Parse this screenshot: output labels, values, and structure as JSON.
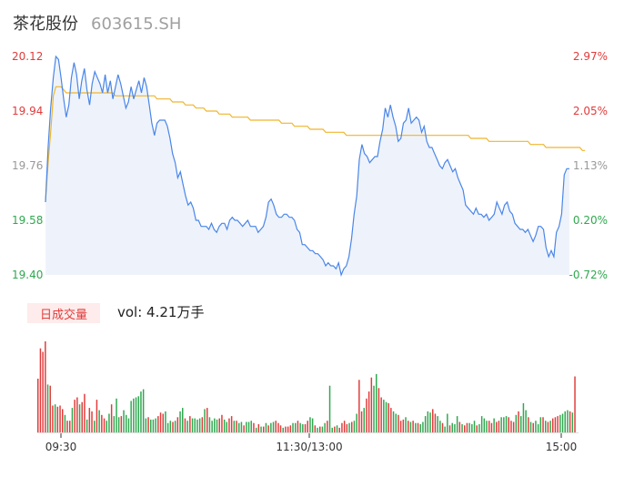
{
  "header": {
    "name": "茶花股份",
    "code": "603615.SH"
  },
  "volume_panel": {
    "tab_label": "日成交量",
    "vol_label": "vol: 4.21万手"
  },
  "colors": {
    "price_line": "#4a86e8",
    "avg_line": "#f0b52c",
    "up": "#e23b3b",
    "down": "#2fa84f",
    "neutral": "#999999"
  },
  "chart_data": [
    {
      "type": "line",
      "y_ticks_left": [
        "20.12",
        "19.94",
        "19.76",
        "19.58",
        "19.40"
      ],
      "y_ticks_right": [
        "2.97%",
        "2.05%",
        "1.13%",
        "0.20%",
        "-0.72%"
      ],
      "ylim": [
        19.4,
        20.12
      ],
      "series": [
        {
          "key": "price",
          "values": [
            19.64,
            19.82,
            19.95,
            20.05,
            20.12,
            20.11,
            20.05,
            19.98,
            19.92,
            19.96,
            20.05,
            20.1,
            20.06,
            19.98,
            20.04,
            20.08,
            20.01,
            19.96,
            20.03,
            20.07,
            20.05,
            20.03,
            20.0,
            20.06,
            20.0,
            20.04,
            19.98,
            20.02,
            20.06,
            20.03,
            19.99,
            19.95,
            19.97,
            20.02,
            19.98,
            20.01,
            20.04,
            20.0,
            20.05,
            20.02,
            19.96,
            19.9,
            19.86,
            19.9,
            19.91,
            19.91,
            19.91,
            19.89,
            19.85,
            19.8,
            19.77,
            19.72,
            19.74,
            19.7,
            19.66,
            19.63,
            19.64,
            19.62,
            19.58,
            19.58,
            19.56,
            19.56,
            19.56,
            19.55,
            19.57,
            19.55,
            19.54,
            19.56,
            19.57,
            19.57,
            19.55,
            19.58,
            19.59,
            19.58,
            19.58,
            19.57,
            19.56,
            19.57,
            19.58,
            19.56,
            19.56,
            19.56,
            19.54,
            19.55,
            19.56,
            19.59,
            19.64,
            19.65,
            19.63,
            19.6,
            19.59,
            19.59,
            19.6,
            19.6,
            19.59,
            19.59,
            19.58,
            19.55,
            19.54,
            19.5,
            19.5,
            19.49,
            19.48,
            19.48,
            19.47,
            19.47,
            19.46,
            19.45,
            19.43,
            19.44,
            19.43,
            19.43,
            19.42,
            19.44,
            19.4,
            19.42,
            19.43,
            19.46,
            19.52,
            19.6,
            19.66,
            19.78,
            19.83,
            19.8,
            19.79,
            19.77,
            19.78,
            19.79,
            19.79,
            19.84,
            19.88,
            19.95,
            19.92,
            19.96,
            19.92,
            19.89,
            19.84,
            19.85,
            19.9,
            19.91,
            19.95,
            19.9,
            19.91,
            19.92,
            19.91,
            19.87,
            19.89,
            19.84,
            19.82,
            19.82,
            19.8,
            19.78,
            19.76,
            19.75,
            19.77,
            19.78,
            19.76,
            19.74,
            19.75,
            19.72,
            19.7,
            19.68,
            19.63,
            19.62,
            19.61,
            19.6,
            19.62,
            19.6,
            19.6,
            19.59,
            19.6,
            19.58,
            19.59,
            19.6,
            19.64,
            19.62,
            19.6,
            19.63,
            19.64,
            19.61,
            19.6,
            19.57,
            19.56,
            19.55,
            19.55,
            19.54,
            19.55,
            19.53,
            19.51,
            19.53,
            19.56,
            19.56,
            19.55,
            19.49,
            19.46,
            19.48,
            19.46,
            19.54,
            19.56,
            19.6,
            19.73,
            19.75,
            19.75
          ]
        },
        {
          "key": "avg",
          "values": [
            19.64,
            19.77,
            19.87,
            19.99,
            20.02,
            20.02,
            20.02,
            20.01,
            20.0,
            20.0,
            20.0,
            20.0,
            20.0,
            20.0,
            20.0,
            20.0,
            20.0,
            20.0,
            20.0,
            20.0,
            20.0,
            20.0,
            20.0,
            20.0,
            20.0,
            20.0,
            20.0,
            19.99,
            19.99,
            19.99,
            19.99,
            19.99,
            19.99,
            19.99,
            19.99,
            19.99,
            19.99,
            19.99,
            19.99,
            19.99,
            19.99,
            19.99,
            19.99,
            19.98,
            19.98,
            19.98,
            19.98,
            19.98,
            19.98,
            19.97,
            19.97,
            19.97,
            19.97,
            19.97,
            19.96,
            19.96,
            19.96,
            19.96,
            19.95,
            19.95,
            19.95,
            19.95,
            19.94,
            19.94,
            19.94,
            19.94,
            19.94,
            19.93,
            19.93,
            19.93,
            19.93,
            19.93,
            19.92,
            19.92,
            19.92,
            19.92,
            19.92,
            19.92,
            19.92,
            19.91,
            19.91,
            19.91,
            19.91,
            19.91,
            19.91,
            19.91,
            19.91,
            19.91,
            19.91,
            19.91,
            19.91,
            19.9,
            19.9,
            19.9,
            19.9,
            19.9,
            19.89,
            19.89,
            19.89,
            19.89,
            19.89,
            19.89,
            19.88,
            19.88,
            19.88,
            19.88,
            19.88,
            19.88,
            19.87,
            19.87,
            19.87,
            19.87,
            19.87,
            19.87,
            19.87,
            19.87,
            19.86,
            19.86,
            19.86,
            19.86,
            19.86,
            19.86,
            19.86,
            19.86,
            19.86,
            19.86,
            19.86,
            19.86,
            19.86,
            19.86,
            19.86,
            19.86,
            19.86,
            19.86,
            19.86,
            19.86,
            19.86,
            19.86,
            19.86,
            19.86,
            19.86,
            19.86,
            19.86,
            19.86,
            19.86,
            19.86,
            19.86,
            19.86,
            19.86,
            19.86,
            19.86,
            19.86,
            19.86,
            19.86,
            19.86,
            19.86,
            19.86,
            19.86,
            19.86,
            19.86,
            19.86,
            19.86,
            19.86,
            19.86,
            19.85,
            19.85,
            19.85,
            19.85,
            19.85,
            19.85,
            19.85,
            19.84,
            19.84,
            19.84,
            19.84,
            19.84,
            19.84,
            19.84,
            19.84,
            19.84,
            19.84,
            19.84,
            19.84,
            19.84,
            19.84,
            19.84,
            19.84,
            19.83,
            19.83,
            19.83,
            19.83,
            19.83,
            19.83,
            19.82,
            19.82,
            19.82,
            19.82,
            19.82,
            19.82,
            19.82,
            19.82,
            19.82,
            19.82,
            19.82,
            19.82,
            19.82,
            19.82,
            19.81,
            19.81
          ]
        }
      ]
    },
    {
      "type": "bar",
      "x_ticks": [
        "09:30",
        "11:30/13:00",
        "15:00"
      ],
      "values": [
        46,
        72,
        69,
        78,
        41,
        40,
        23,
        24,
        22,
        23,
        20,
        15,
        10,
        10,
        21,
        28,
        30,
        24,
        26,
        33,
        11,
        21,
        18,
        10,
        28,
        19,
        15,
        12,
        10,
        16,
        24,
        14,
        29,
        13,
        14,
        19,
        15,
        12,
        27,
        29,
        30,
        31,
        35,
        37,
        12,
        13,
        11,
        11,
        12,
        14,
        17,
        16,
        18,
        8,
        10,
        9,
        10,
        13,
        18,
        21,
        12,
        10,
        14,
        12,
        12,
        11,
        12,
        13,
        20,
        21,
        13,
        10,
        12,
        11,
        12,
        15,
        11,
        9,
        12,
        14,
        10,
        10,
        8,
        9,
        6,
        9,
        9,
        10,
        8,
        4,
        7,
        5,
        5,
        8,
        6,
        8,
        9,
        10,
        8,
        6,
        4,
        5,
        5,
        6,
        8,
        8,
        10,
        8,
        7,
        7,
        10,
        13,
        12,
        6,
        4,
        5,
        5,
        8,
        10,
        40,
        4,
        5,
        6,
        4,
        8,
        10,
        7,
        8,
        9,
        10,
        16,
        45,
        18,
        21,
        29,
        35,
        47,
        40,
        50,
        38,
        30,
        28,
        26,
        25,
        21,
        18,
        16,
        15,
        10,
        11,
        13,
        10,
        9,
        10,
        8,
        8,
        7,
        9,
        14,
        18,
        17,
        20,
        16,
        14,
        10,
        8,
        5,
        16,
        6,
        8,
        7,
        14,
        9,
        7,
        6,
        8,
        8,
        7,
        10,
        6,
        7,
        14,
        12,
        10,
        10,
        8,
        12,
        9,
        10,
        13,
        13,
        14,
        13,
        10,
        9,
        15,
        18,
        14,
        25,
        19,
        13,
        9,
        8,
        10,
        7,
        13,
        13,
        10,
        9,
        10,
        12,
        13,
        14,
        15,
        16,
        18,
        19,
        18,
        17,
        48
      ],
      "colors": [
        "r",
        "r",
        "r",
        "r",
        "g",
        "r",
        "r",
        "g",
        "r",
        "r",
        "r",
        "g",
        "r",
        "r",
        "g",
        "r",
        "r",
        "g",
        "r",
        "r",
        "g",
        "r",
        "r",
        "g",
        "r",
        "g",
        "r",
        "r",
        "g",
        "g",
        "r",
        "g",
        "g",
        "g",
        "r",
        "g",
        "g",
        "g",
        "g",
        "g",
        "g",
        "g",
        "g",
        "g",
        "g",
        "r",
        "g",
        "g",
        "g",
        "r",
        "r",
        "r",
        "g",
        "g",
        "g",
        "r",
        "g",
        "r",
        "g",
        "g",
        "r",
        "g",
        "r",
        "g",
        "g",
        "g",
        "g",
        "r",
        "g",
        "r",
        "g",
        "g",
        "g",
        "g",
        "r",
        "r",
        "g",
        "g",
        "r",
        "r",
        "g",
        "r",
        "g",
        "g",
        "r",
        "g",
        "g",
        "g",
        "r",
        "g",
        "r",
        "g",
        "r",
        "g",
        "r",
        "g",
        "g",
        "r",
        "r",
        "r",
        "g",
        "r",
        "r",
        "r",
        "g",
        "g",
        "r",
        "g",
        "g",
        "r",
        "r",
        "g",
        "g",
        "r",
        "g",
        "r",
        "g",
        "g",
        "r",
        "g",
        "g",
        "r",
        "g",
        "r",
        "r",
        "r",
        "r",
        "g",
        "r",
        "g",
        "g",
        "r",
        "r",
        "g",
        "r",
        "r",
        "r",
        "g",
        "g",
        "r",
        "r",
        "g",
        "g",
        "r",
        "r",
        "g",
        "g",
        "r",
        "r",
        "r",
        "g",
        "r",
        "g",
        "r",
        "g",
        "r",
        "g",
        "g",
        "g",
        "g",
        "g",
        "r",
        "r",
        "g",
        "g",
        "r",
        "g",
        "g",
        "r",
        "g",
        "g",
        "g",
        "r",
        "g",
        "r",
        "r",
        "g",
        "g",
        "g",
        "r",
        "g",
        "g",
        "g",
        "g",
        "r",
        "r",
        "g",
        "r",
        "r",
        "g",
        "g",
        "g",
        "r",
        "r",
        "r",
        "g",
        "r",
        "g",
        "g",
        "g",
        "r",
        "g",
        "r",
        "g",
        "g",
        "g",
        "r",
        "g",
        "r",
        "g",
        "r",
        "r",
        "r",
        "g",
        "g",
        "g",
        "g",
        "r",
        "g",
        "r",
        "g",
        "n"
      ]
    }
  ]
}
